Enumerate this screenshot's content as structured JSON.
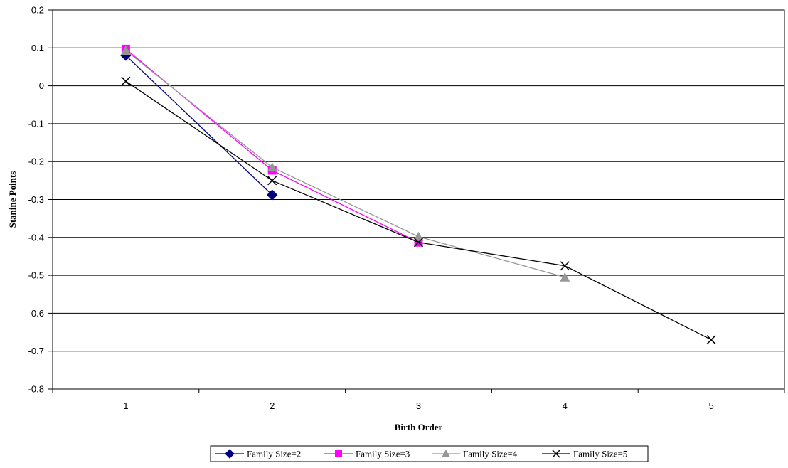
{
  "chart_data": {
    "type": "line",
    "title": "",
    "xlabel": "Birth Order",
    "ylabel": "Stanine Points",
    "categories": [
      "1",
      "2",
      "3",
      "4",
      "5"
    ],
    "ylim": [
      -0.8,
      0.2
    ],
    "yticks": [
      0.2,
      0.1,
      0,
      -0.1,
      -0.2,
      -0.3,
      -0.4,
      -0.5,
      -0.6,
      -0.7,
      -0.8
    ],
    "ytick_labels": [
      "0.2",
      "0.1",
      "0",
      "-0.1",
      "-0.2",
      "-0.3",
      "-0.4",
      "-0.5",
      "-0.6",
      "-0.7",
      "-0.8"
    ],
    "grid": "horizontal",
    "legend_position": "bottom",
    "series": [
      {
        "name": "Family Size=2",
        "color": "#000080",
        "marker": "diamond",
        "values": [
          0.08,
          -0.288,
          null,
          null,
          null
        ]
      },
      {
        "name": "Family Size=3",
        "color": "#FF00FF",
        "marker": "square",
        "values": [
          0.097,
          -0.223,
          -0.413,
          null,
          null
        ]
      },
      {
        "name": "Family Size=4",
        "color": "#969696",
        "marker": "triangle",
        "values": [
          0.093,
          -0.215,
          -0.398,
          -0.505,
          null
        ]
      },
      {
        "name": "Family Size=5",
        "color": "#000000",
        "marker": "x",
        "values": [
          0.012,
          -0.25,
          -0.413,
          -0.475,
          -0.67
        ]
      }
    ]
  }
}
